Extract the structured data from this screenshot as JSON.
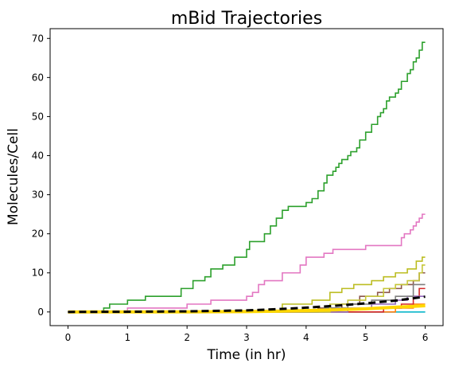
{
  "chart_data": {
    "type": "line",
    "title": "mBid Trajectories",
    "xlabel": "Time (in hr)",
    "ylabel": "Molecules/Cell",
    "xlim": [
      -0.3,
      6.3
    ],
    "ylim": [
      -3.5,
      72.5
    ],
    "xticks": [
      0,
      1,
      2,
      3,
      4,
      5,
      6
    ],
    "yticks": [
      0,
      10,
      20,
      30,
      40,
      50,
      60,
      70
    ],
    "grid": false,
    "legend": "none",
    "series": [
      {
        "color": "#1f77b4",
        "step": true,
        "points": [
          [
            0,
            0
          ],
          [
            6,
            0
          ]
        ]
      },
      {
        "color": "#17becf",
        "step": true,
        "points": [
          [
            0,
            0
          ],
          [
            6,
            0
          ]
        ]
      },
      {
        "color": "#ff7f0e",
        "step": true,
        "points": [
          [
            0,
            0
          ],
          [
            5.5,
            0
          ],
          [
            5.5,
            1
          ],
          [
            5.8,
            1
          ],
          [
            5.8,
            2
          ],
          [
            6,
            2
          ]
        ]
      },
      {
        "color": "#d62728",
        "step": true,
        "points": [
          [
            0,
            0
          ],
          [
            5.3,
            0
          ],
          [
            5.3,
            1
          ],
          [
            5.6,
            1
          ],
          [
            5.6,
            2
          ],
          [
            5.8,
            2
          ],
          [
            5.8,
            4
          ],
          [
            5.9,
            4
          ],
          [
            5.9,
            6
          ],
          [
            6,
            6
          ]
        ]
      },
      {
        "color": "#9467bd",
        "step": true,
        "points": [
          [
            0,
            0
          ],
          [
            4.7,
            0
          ],
          [
            4.7,
            1
          ],
          [
            5.1,
            1
          ],
          [
            5.1,
            2
          ],
          [
            5.5,
            2
          ],
          [
            5.5,
            3
          ],
          [
            5.7,
            3
          ],
          [
            5.7,
            4
          ],
          [
            6,
            4
          ]
        ]
      },
      {
        "color": "#8c564b",
        "step": true,
        "points": [
          [
            0,
            0
          ],
          [
            4.2,
            0
          ],
          [
            4.2,
            1
          ],
          [
            4.6,
            1
          ],
          [
            4.6,
            2
          ],
          [
            4.9,
            2
          ],
          [
            4.9,
            4
          ],
          [
            5.2,
            4
          ],
          [
            5.2,
            5
          ],
          [
            5.4,
            5
          ],
          [
            5.4,
            6
          ],
          [
            5.6,
            6
          ],
          [
            5.6,
            7
          ],
          [
            5.8,
            7
          ],
          [
            5.8,
            8
          ],
          [
            5.9,
            8
          ],
          [
            5.9,
            10
          ],
          [
            6,
            10
          ]
        ]
      },
      {
        "color": "#7f7f7f",
        "step": true,
        "points": [
          [
            0,
            0
          ],
          [
            4.3,
            0
          ],
          [
            4.3,
            1
          ],
          [
            4.7,
            1
          ],
          [
            4.7,
            2
          ],
          [
            5.1,
            2
          ],
          [
            5.1,
            3
          ],
          [
            5.5,
            3
          ],
          [
            5.5,
            4
          ],
          [
            5.8,
            4
          ],
          [
            5.8,
            7
          ],
          [
            6,
            7
          ]
        ]
      },
      {
        "color": "#bcbd22",
        "step": true,
        "points": [
          [
            0,
            0
          ],
          [
            3.6,
            0
          ],
          [
            3.6,
            2
          ],
          [
            4.1,
            2
          ],
          [
            4.1,
            3
          ],
          [
            4.4,
            3
          ],
          [
            4.4,
            5
          ],
          [
            4.6,
            5
          ],
          [
            4.6,
            6
          ],
          [
            4.8,
            6
          ],
          [
            4.8,
            7
          ],
          [
            5.1,
            7
          ],
          [
            5.1,
            8
          ],
          [
            5.3,
            8
          ],
          [
            5.3,
            9
          ],
          [
            5.5,
            9
          ],
          [
            5.5,
            10
          ],
          [
            5.7,
            10
          ],
          [
            5.7,
            11
          ],
          [
            5.85,
            11
          ],
          [
            5.85,
            13
          ],
          [
            5.95,
            13
          ],
          [
            5.95,
            14
          ],
          [
            6,
            14
          ]
        ]
      },
      {
        "color": "#c5c63a",
        "step": true,
        "points": [
          [
            0,
            0
          ],
          [
            4.4,
            0
          ],
          [
            4.4,
            2
          ],
          [
            4.7,
            2
          ],
          [
            4.7,
            3
          ],
          [
            5.0,
            3
          ],
          [
            5.0,
            4
          ],
          [
            5.3,
            4
          ],
          [
            5.3,
            6
          ],
          [
            5.5,
            6
          ],
          [
            5.5,
            7
          ],
          [
            5.7,
            7
          ],
          [
            5.7,
            8
          ],
          [
            5.9,
            8
          ],
          [
            5.9,
            10
          ],
          [
            5.95,
            10
          ],
          [
            5.95,
            12
          ],
          [
            6,
            12
          ]
        ]
      },
      {
        "color": "#e377c2",
        "step": true,
        "points": [
          [
            0,
            0
          ],
          [
            1.0,
            0
          ],
          [
            1.0,
            1
          ],
          [
            2.0,
            1
          ],
          [
            2.0,
            2
          ],
          [
            2.4,
            2
          ],
          [
            2.4,
            3
          ],
          [
            3.0,
            3
          ],
          [
            3.0,
            4
          ],
          [
            3.1,
            4
          ],
          [
            3.1,
            5
          ],
          [
            3.2,
            5
          ],
          [
            3.2,
            7
          ],
          [
            3.3,
            7
          ],
          [
            3.3,
            8
          ],
          [
            3.6,
            8
          ],
          [
            3.6,
            10
          ],
          [
            3.9,
            10
          ],
          [
            3.9,
            12
          ],
          [
            4.0,
            12
          ],
          [
            4.0,
            14
          ],
          [
            4.3,
            14
          ],
          [
            4.3,
            15
          ],
          [
            4.45,
            15
          ],
          [
            4.45,
            16
          ],
          [
            5.0,
            16
          ],
          [
            5.0,
            17
          ],
          [
            5.6,
            17
          ],
          [
            5.6,
            19
          ],
          [
            5.65,
            19
          ],
          [
            5.65,
            20
          ],
          [
            5.75,
            20
          ],
          [
            5.75,
            21
          ],
          [
            5.8,
            21
          ],
          [
            5.8,
            22
          ],
          [
            5.85,
            22
          ],
          [
            5.85,
            23
          ],
          [
            5.9,
            23
          ],
          [
            5.9,
            24
          ],
          [
            5.95,
            24
          ],
          [
            5.95,
            25
          ],
          [
            6,
            25
          ]
        ]
      },
      {
        "color": "#2ca02c",
        "step": true,
        "points": [
          [
            0,
            0
          ],
          [
            0.6,
            0
          ],
          [
            0.6,
            1
          ],
          [
            0.7,
            1
          ],
          [
            0.7,
            2
          ],
          [
            1.0,
            2
          ],
          [
            1.0,
            3
          ],
          [
            1.3,
            3
          ],
          [
            1.3,
            4
          ],
          [
            1.9,
            4
          ],
          [
            1.9,
            6
          ],
          [
            2.1,
            6
          ],
          [
            2.1,
            8
          ],
          [
            2.3,
            8
          ],
          [
            2.3,
            9
          ],
          [
            2.4,
            9
          ],
          [
            2.4,
            11
          ],
          [
            2.6,
            11
          ],
          [
            2.6,
            12
          ],
          [
            2.8,
            12
          ],
          [
            2.8,
            14
          ],
          [
            3.0,
            14
          ],
          [
            3.0,
            16
          ],
          [
            3.05,
            16
          ],
          [
            3.05,
            18
          ],
          [
            3.3,
            18
          ],
          [
            3.3,
            20
          ],
          [
            3.4,
            20
          ],
          [
            3.4,
            22
          ],
          [
            3.5,
            22
          ],
          [
            3.5,
            24
          ],
          [
            3.6,
            24
          ],
          [
            3.6,
            26
          ],
          [
            3.7,
            26
          ],
          [
            3.7,
            27
          ],
          [
            4.0,
            27
          ],
          [
            4.0,
            28
          ],
          [
            4.1,
            28
          ],
          [
            4.1,
            29
          ],
          [
            4.2,
            29
          ],
          [
            4.2,
            31
          ],
          [
            4.3,
            31
          ],
          [
            4.3,
            33
          ],
          [
            4.35,
            33
          ],
          [
            4.35,
            35
          ],
          [
            4.45,
            35
          ],
          [
            4.45,
            36
          ],
          [
            4.5,
            36
          ],
          [
            4.5,
            37
          ],
          [
            4.55,
            37
          ],
          [
            4.55,
            38
          ],
          [
            4.6,
            38
          ],
          [
            4.6,
            39
          ],
          [
            4.7,
            39
          ],
          [
            4.7,
            40
          ],
          [
            4.75,
            40
          ],
          [
            4.75,
            41
          ],
          [
            4.85,
            41
          ],
          [
            4.85,
            42
          ],
          [
            4.9,
            42
          ],
          [
            4.9,
            44
          ],
          [
            5.0,
            44
          ],
          [
            5.0,
            46
          ],
          [
            5.1,
            46
          ],
          [
            5.1,
            48
          ],
          [
            5.2,
            48
          ],
          [
            5.2,
            50
          ],
          [
            5.25,
            50
          ],
          [
            5.25,
            51
          ],
          [
            5.3,
            51
          ],
          [
            5.3,
            52
          ],
          [
            5.35,
            52
          ],
          [
            5.35,
            54
          ],
          [
            5.4,
            54
          ],
          [
            5.4,
            55
          ],
          [
            5.5,
            55
          ],
          [
            5.5,
            56
          ],
          [
            5.55,
            56
          ],
          [
            5.55,
            57
          ],
          [
            5.6,
            57
          ],
          [
            5.6,
            59
          ],
          [
            5.7,
            59
          ],
          [
            5.7,
            61
          ],
          [
            5.75,
            61
          ],
          [
            5.75,
            62
          ],
          [
            5.8,
            62
          ],
          [
            5.8,
            64
          ],
          [
            5.85,
            64
          ],
          [
            5.85,
            65
          ],
          [
            5.9,
            65
          ],
          [
            5.9,
            67
          ],
          [
            5.95,
            67
          ],
          [
            5.95,
            69
          ],
          [
            6,
            69
          ]
        ]
      },
      {
        "color": "#ffd700",
        "step": false,
        "width": 4,
        "points": [
          [
            0,
            0
          ],
          [
            2,
            0.02
          ],
          [
            3,
            0.1
          ],
          [
            3.5,
            0.2
          ],
          [
            4,
            0.35
          ],
          [
            4.5,
            0.55
          ],
          [
            5,
            0.8
          ],
          [
            5.5,
            1.2
          ],
          [
            6,
            1.6
          ]
        ]
      },
      {
        "color": "#000000",
        "step": false,
        "width": 3,
        "dash": "9,5",
        "points": [
          [
            0,
            0
          ],
          [
            1,
            0.05
          ],
          [
            2,
            0.15
          ],
          [
            3,
            0.4
          ],
          [
            3.5,
            0.7
          ],
          [
            4,
            1.1
          ],
          [
            4.5,
            1.6
          ],
          [
            5,
            2.2
          ],
          [
            5.5,
            2.9
          ],
          [
            6,
            3.9
          ]
        ]
      }
    ]
  }
}
